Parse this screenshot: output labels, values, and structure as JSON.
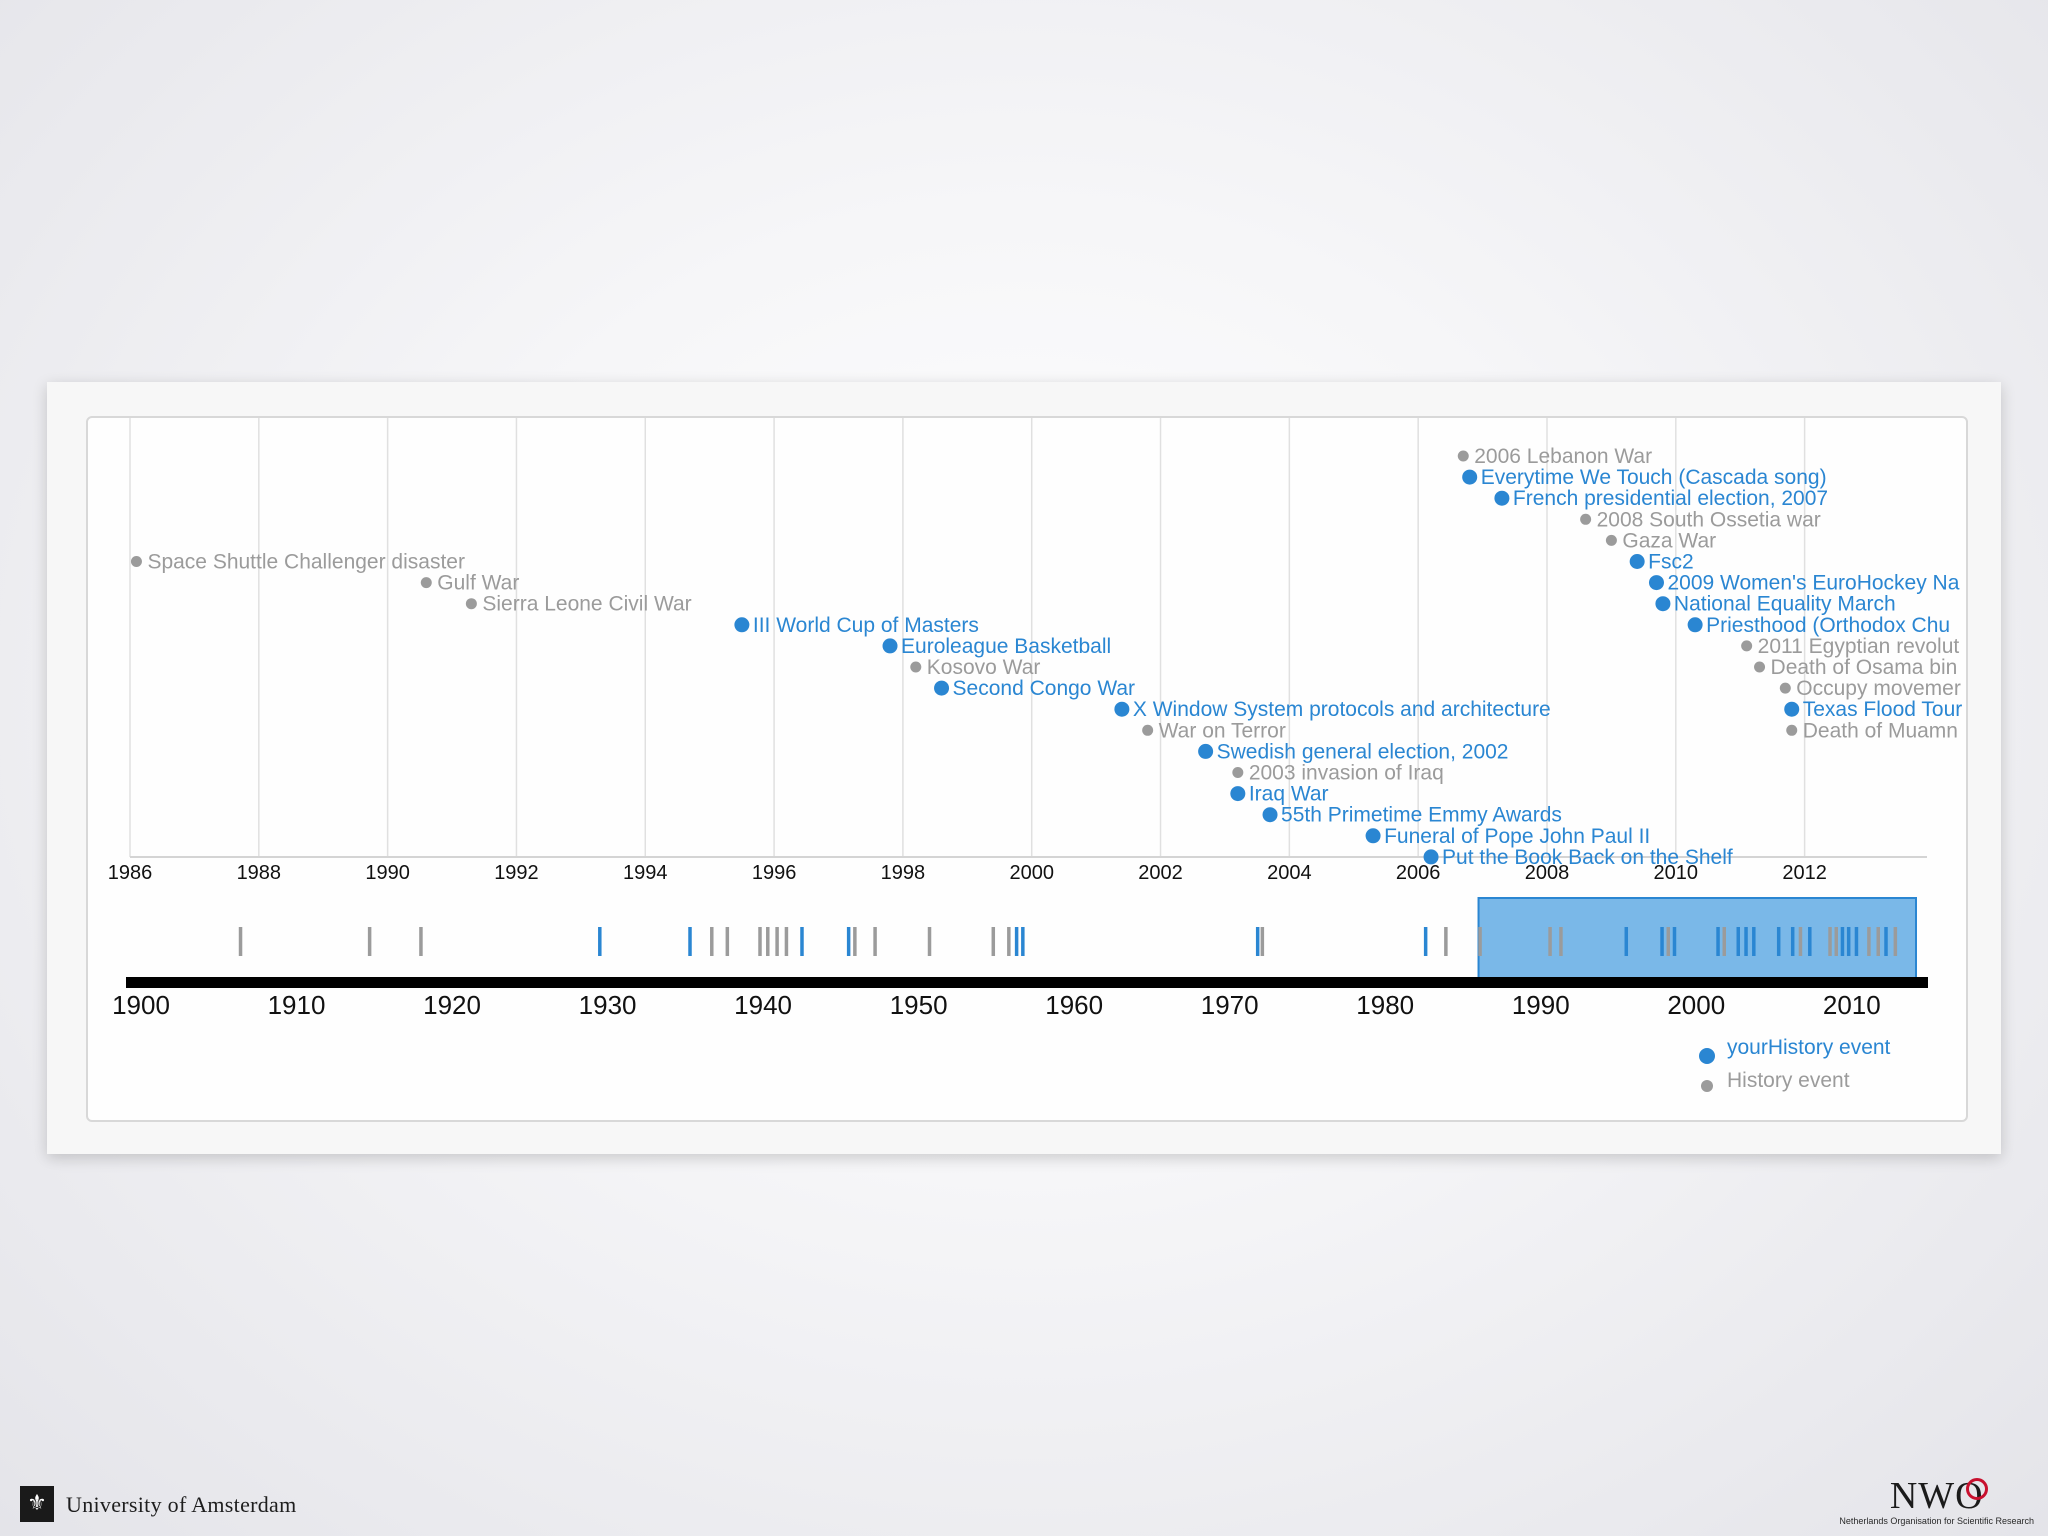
{
  "colors": {
    "yourhistory": "#2a86d2",
    "history": "#9b9b9b",
    "brush_fill": "#7ab8e8",
    "brush_stroke": "#2a86d2",
    "timeline_bar": "#000000",
    "grid": "#e0e0e0"
  },
  "chart_data": {
    "type": "timeline",
    "title": "",
    "focus": {
      "x_range": [
        1986,
        2013.9
      ],
      "x_ticks": [
        1986,
        1988,
        1990,
        1992,
        1994,
        1996,
        1998,
        2000,
        2002,
        2004,
        2006,
        2008,
        2010,
        2012
      ],
      "events": [
        {
          "year": 1986.1,
          "label": "Space Shuttle Challenger disaster",
          "kind": "history",
          "row": 5
        },
        {
          "year": 1990.6,
          "label": "Gulf War",
          "kind": "history",
          "row": 6
        },
        {
          "year": 1991.3,
          "label": "Sierra Leone Civil War",
          "kind": "history",
          "row": 7
        },
        {
          "year": 1995.5,
          "label": "III World Cup of Masters",
          "kind": "yourhistory",
          "row": 8
        },
        {
          "year": 1997.8,
          "label": "Euroleague Basketball",
          "kind": "yourhistory",
          "row": 9
        },
        {
          "year": 1998.2,
          "label": "Kosovo War",
          "kind": "history",
          "row": 10
        },
        {
          "year": 1998.6,
          "label": "Second Congo War",
          "kind": "yourhistory",
          "row": 11
        },
        {
          "year": 2001.4,
          "label": "X Window System protocols and architecture",
          "kind": "yourhistory",
          "row": 12
        },
        {
          "year": 2001.8,
          "label": "War on Terror",
          "kind": "history",
          "row": 13
        },
        {
          "year": 2002.7,
          "label": "Swedish general election, 2002",
          "kind": "yourhistory",
          "row": 14
        },
        {
          "year": 2003.2,
          "label": "2003 invasion of Iraq",
          "kind": "history",
          "row": 15
        },
        {
          "year": 2003.2,
          "label": "Iraq War",
          "kind": "yourhistory",
          "row": 16
        },
        {
          "year": 2003.7,
          "label": "55th Primetime Emmy Awards",
          "kind": "yourhistory",
          "row": 17
        },
        {
          "year": 2005.3,
          "label": "Funeral of Pope John Paul II",
          "kind": "yourhistory",
          "row": 18
        },
        {
          "year": 2006.2,
          "label": "Put the Book Back on the Shelf",
          "kind": "yourhistory",
          "row": 19
        },
        {
          "year": 2006.7,
          "label": "2006 Lebanon War",
          "kind": "history",
          "row": 0
        },
        {
          "year": 2006.8,
          "label": "Everytime We Touch (Cascada song)",
          "kind": "yourhistory",
          "row": 1
        },
        {
          "year": 2007.3,
          "label": "French presidential election, 2007",
          "kind": "yourhistory",
          "row": 2
        },
        {
          "year": 2008.6,
          "label": "2008 South Ossetia war",
          "kind": "history",
          "row": 3
        },
        {
          "year": 2009.0,
          "label": "Gaza War",
          "kind": "history",
          "row": 4
        },
        {
          "year": 2009.4,
          "label": "Fsc2",
          "kind": "yourhistory",
          "row": 5
        },
        {
          "year": 2009.7,
          "label": "2009 Women's EuroHockey Na",
          "kind": "yourhistory",
          "row": 6
        },
        {
          "year": 2009.8,
          "label": "National Equality March",
          "kind": "yourhistory",
          "row": 7
        },
        {
          "year": 2010.3,
          "label": "Priesthood (Orthodox Chu",
          "kind": "yourhistory",
          "row": 8
        },
        {
          "year": 2011.1,
          "label": "2011 Egyptian revolut",
          "kind": "history",
          "row": 9
        },
        {
          "year": 2011.3,
          "label": "Death of Osama bin",
          "kind": "history",
          "row": 10
        },
        {
          "year": 2011.7,
          "label": "Occupy movemer",
          "kind": "history",
          "row": 11
        },
        {
          "year": 2011.8,
          "label": "Texas Flood Tour",
          "kind": "yourhistory",
          "row": 12
        },
        {
          "year": 2011.8,
          "label": "Death of Muamn",
          "kind": "history",
          "row": 13
        }
      ]
    },
    "context": {
      "x_range": [
        1900,
        2014
      ],
      "x_ticks": [
        1900,
        1910,
        1920,
        1930,
        1940,
        1950,
        1960,
        1970,
        1980,
        1990,
        2000,
        2010
      ],
      "brush": [
        1986,
        2014
      ],
      "events": [
        {
          "year": 1906.4,
          "kind": "history"
        },
        {
          "year": 1914.7,
          "kind": "history"
        },
        {
          "year": 1918.0,
          "kind": "history"
        },
        {
          "year": 1929.5,
          "kind": "yourhistory"
        },
        {
          "year": 1935.3,
          "kind": "yourhistory"
        },
        {
          "year": 1936.7,
          "kind": "history"
        },
        {
          "year": 1937.7,
          "kind": "history"
        },
        {
          "year": 1939.8,
          "kind": "history"
        },
        {
          "year": 1940.3,
          "kind": "history"
        },
        {
          "year": 1940.9,
          "kind": "history"
        },
        {
          "year": 1941.5,
          "kind": "history"
        },
        {
          "year": 1942.5,
          "kind": "yourhistory"
        },
        {
          "year": 1945.5,
          "kind": "yourhistory"
        },
        {
          "year": 1945.9,
          "kind": "history"
        },
        {
          "year": 1947.2,
          "kind": "history"
        },
        {
          "year": 1950.7,
          "kind": "history"
        },
        {
          "year": 1954.8,
          "kind": "history"
        },
        {
          "year": 1955.8,
          "kind": "history"
        },
        {
          "year": 1956.3,
          "kind": "yourhistory"
        },
        {
          "year": 1956.7,
          "kind": "yourhistory"
        },
        {
          "year": 1971.8,
          "kind": "yourhistory"
        },
        {
          "year": 1972.1,
          "kind": "history"
        },
        {
          "year": 1982.6,
          "kind": "yourhistory"
        },
        {
          "year": 1983.9,
          "kind": "history"
        },
        {
          "year": 1986.1,
          "kind": "history"
        },
        {
          "year": 1990.6,
          "kind": "history"
        },
        {
          "year": 1991.3,
          "kind": "history"
        },
        {
          "year": 1995.5,
          "kind": "yourhistory"
        },
        {
          "year": 1997.8,
          "kind": "yourhistory"
        },
        {
          "year": 1998.2,
          "kind": "history"
        },
        {
          "year": 1998.6,
          "kind": "yourhistory"
        },
        {
          "year": 2001.4,
          "kind": "yourhistory"
        },
        {
          "year": 2001.8,
          "kind": "history"
        },
        {
          "year": 2002.7,
          "kind": "yourhistory"
        },
        {
          "year": 2003.2,
          "kind": "yourhistory"
        },
        {
          "year": 2003.7,
          "kind": "yourhistory"
        },
        {
          "year": 2005.3,
          "kind": "yourhistory"
        },
        {
          "year": 2006.2,
          "kind": "yourhistory"
        },
        {
          "year": 2006.7,
          "kind": "history"
        },
        {
          "year": 2007.3,
          "kind": "yourhistory"
        },
        {
          "year": 2008.6,
          "kind": "history"
        },
        {
          "year": 2009.0,
          "kind": "history"
        },
        {
          "year": 2009.4,
          "kind": "yourhistory"
        },
        {
          "year": 2009.8,
          "kind": "yourhistory"
        },
        {
          "year": 2010.3,
          "kind": "yourhistory"
        },
        {
          "year": 2011.1,
          "kind": "history"
        },
        {
          "year": 2011.7,
          "kind": "history"
        },
        {
          "year": 2012.2,
          "kind": "yourhistory"
        },
        {
          "year": 2012.8,
          "kind": "history"
        }
      ]
    },
    "legend": [
      {
        "label": "yourHistory event",
        "kind": "yourhistory"
      },
      {
        "label": "History event",
        "kind": "history"
      }
    ],
    "legend_position": "bottom-right"
  },
  "footer": {
    "university_logo_glyph": "⚜",
    "university_name": "University of Amsterdam",
    "nwo_logo": "NWO",
    "nwo_subtitle": "Netherlands Organisation for Scientific Research"
  }
}
